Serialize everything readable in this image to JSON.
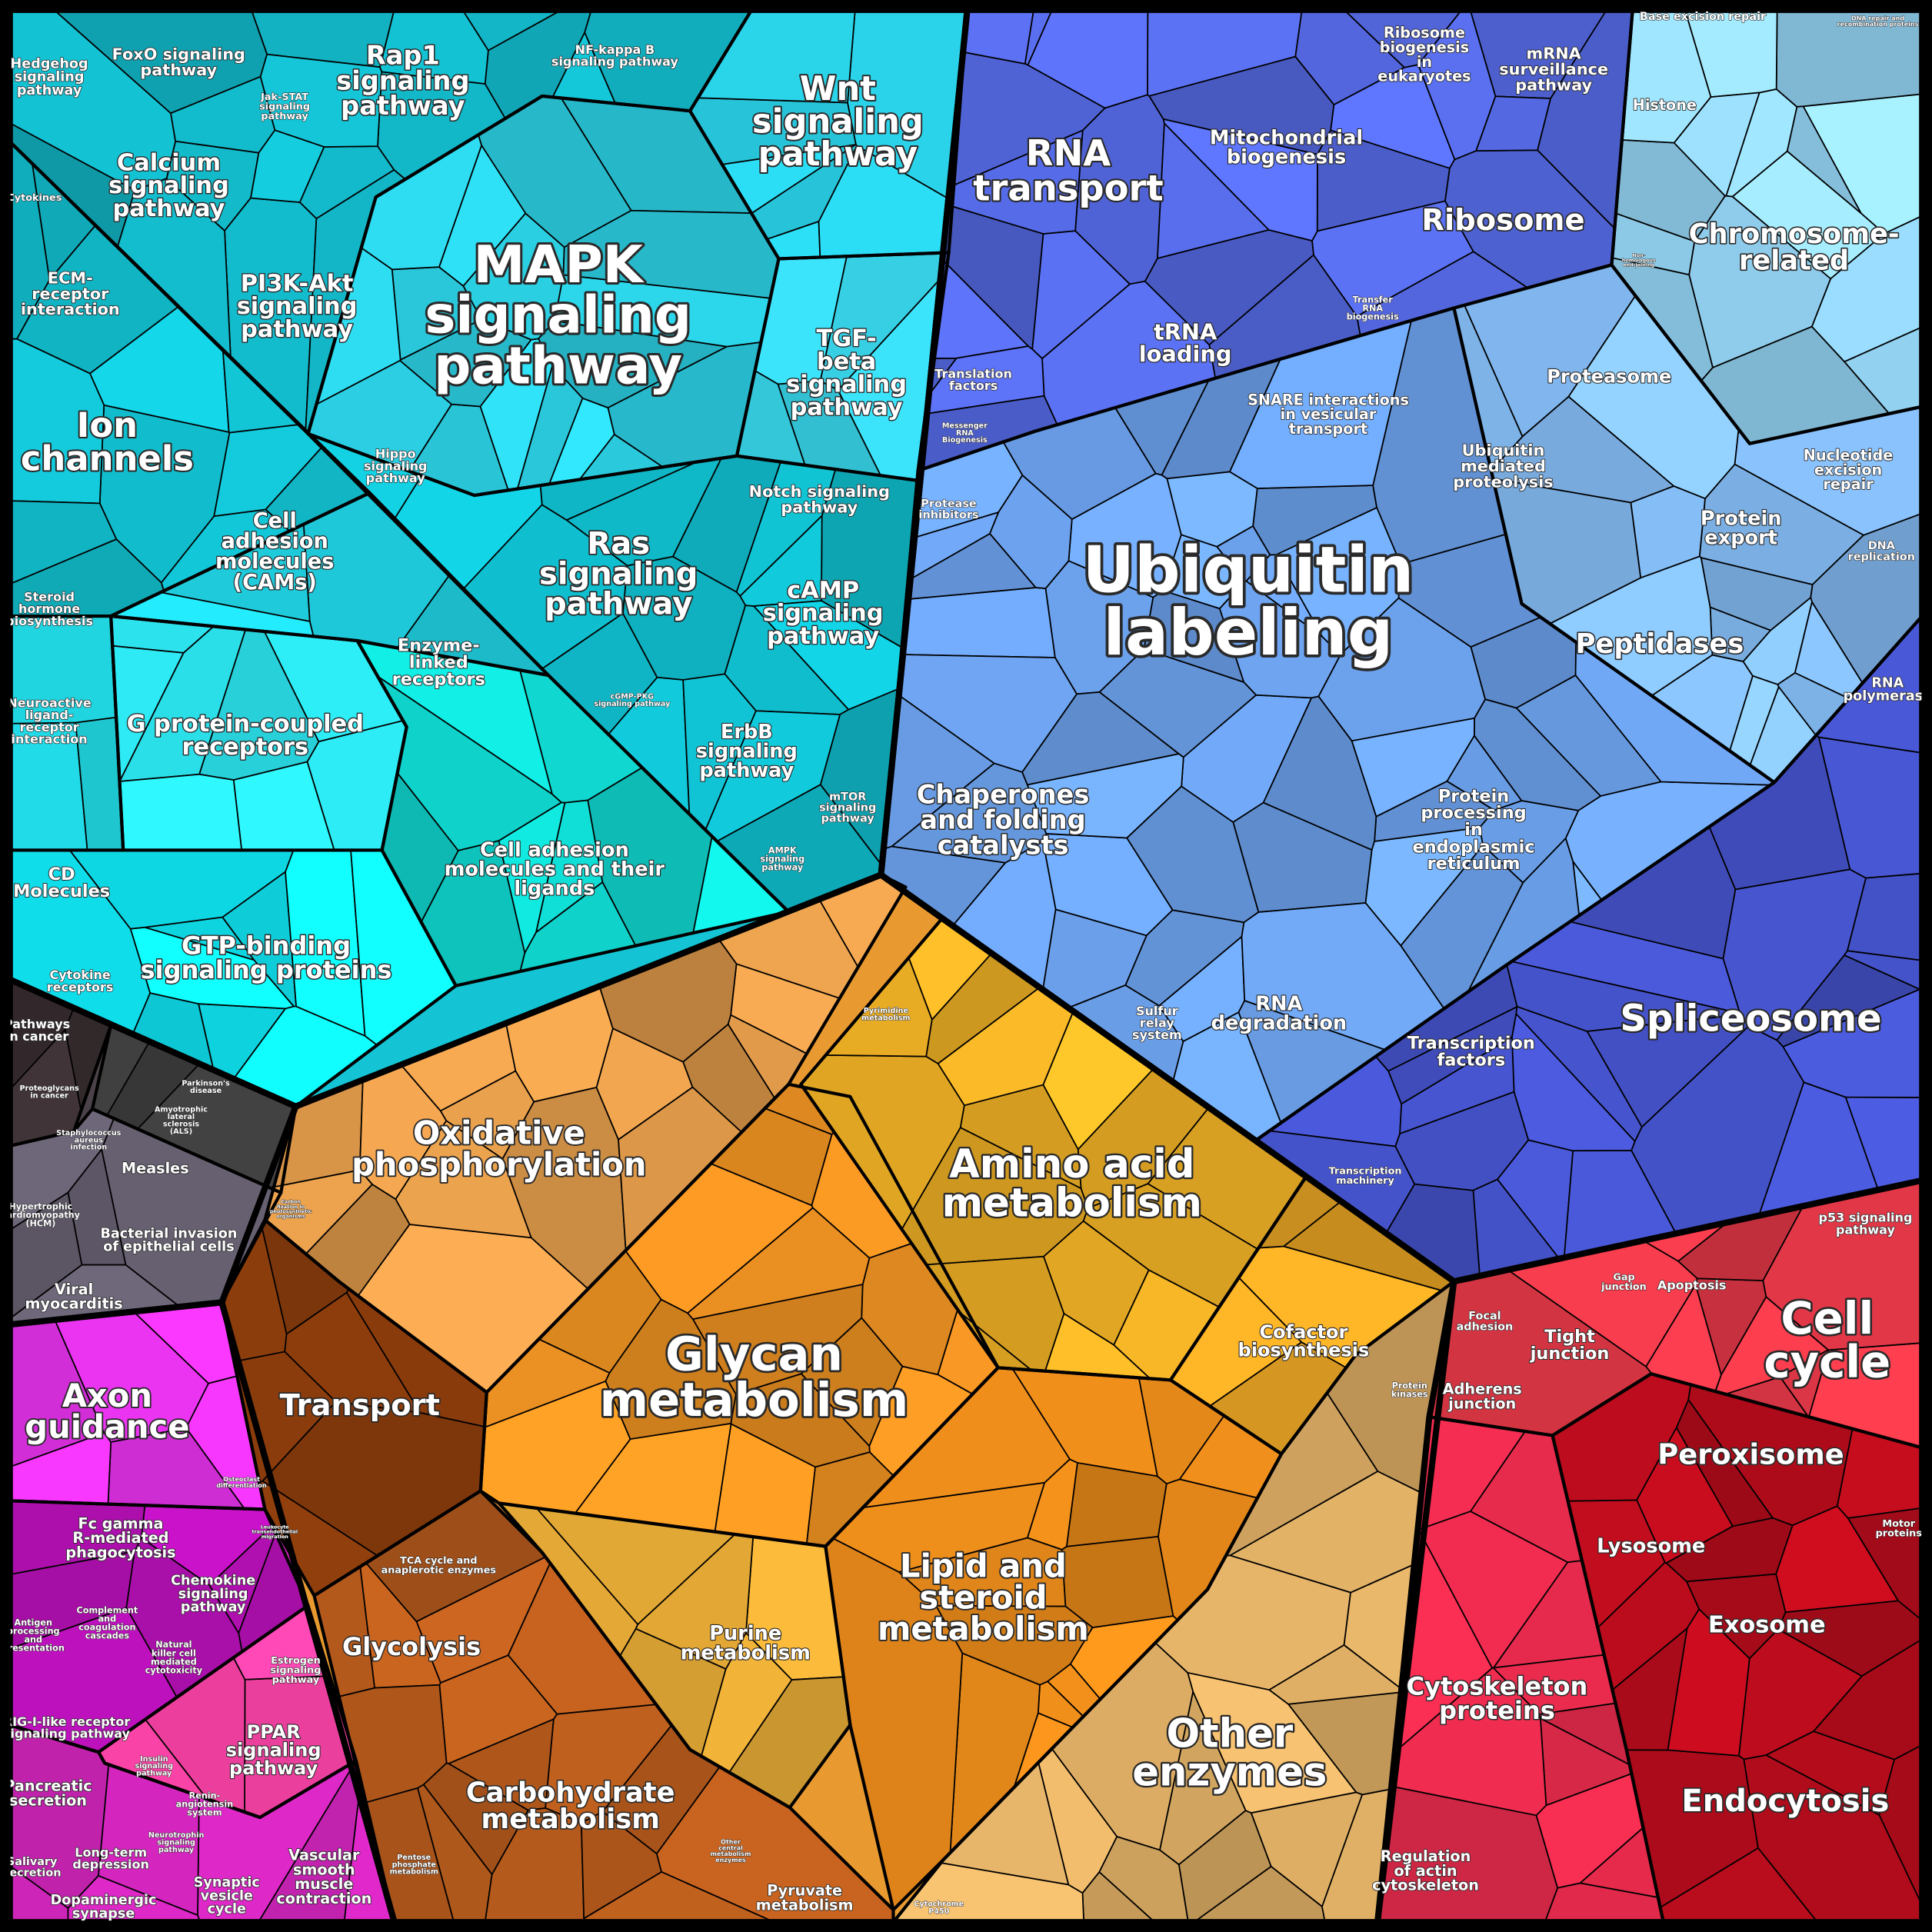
{
  "chart_data": {
    "type": "treemap",
    "style": "voronoi proteomap",
    "groups": [
      {
        "color": "#14c4d4",
        "labels": [
          "Hedgehog\nsignaling\npathway",
          "FoxO signaling\npathway",
          "Jak-STAT\nsignaling\npathway",
          "Rap1\nsignaling\npathway",
          "NF-kappa B\nsignaling pathway",
          "Wnt\nsignaling\npathway",
          "Calcium\nsignaling\npathway",
          "Cytokines",
          "ECM-\nreceptor\ninteraction",
          "PI3K-Akt\nsignaling\npathway",
          "MAPK\nsignaling\npathway",
          "TGF-\nbeta\nsignaling\npathway",
          "Ion\nchannels",
          "Hippo\nsignaling\npathway",
          "Cell\nadhesion\nmolecules\n(CAMs)",
          "Notch signaling\npathway",
          "Ras\nsignaling\npathway",
          "cAMP\nsignaling\npathway",
          "Steroid\nhormone\nbiosynthesis",
          "Enzyme-\nlinked\nreceptors",
          "cGMP-PKG\nsignaling pathway",
          "Neuroactive\nligand-\nreceptor\ninteraction",
          "G protein-coupled\nreceptors",
          "ErbB\nsignaling\npathway",
          "mTOR\nsignaling\npathway",
          "Cell adhesion\nmolecules and their\nligands",
          "AMPK\nsignaling\npathway",
          "CD\nMolecules",
          "GTP-binding\nsignaling proteins",
          "Cytokine\nreceptors"
        ]
      },
      {
        "color": "#4a4248",
        "labels": [
          "Pathways\nin cancer",
          "Proteoglycans\nin cancer",
          "Parkinson's\ndisease",
          "Amyotrophic\nlateral\nsclerosis\n(ALS)",
          "Staphylococcus\naureus\ninfection",
          "Measles",
          "Hypertrophic\ncardiomyopathy\n(HCM)",
          "Bacterial invasion\nof epithelial cells",
          "Viral\nmyocarditis"
        ]
      },
      {
        "color": "#c824b4",
        "labels": [
          "Axon\nguidance",
          "Osteoclast\ndifferentiation",
          "Fc gamma\nR-mediated\nphagocytosis",
          "Leukocyte\ntransendothelial\nmigration",
          "Chemokine\nsignaling\npathway",
          "Complement\nand\ncoagulation\ncascades",
          "Antigen\nprocessing\nand\npresentation",
          "Natural\nkiller cell\nmediated\ncytotoxicity",
          "Estrogen\nsignaling\npathway",
          "RIG-I-like receptor\nsignaling pathway",
          "PPAR\nsignaling\npathway",
          "Insulin\nsignaling\npathway",
          "Renin-\nangiotensin\nsystem",
          "Pancreatic\nsecretion",
          "Neurotrophin\nsignaling\npathway",
          "Salivary\nsecretion",
          "Long-term\ndepression",
          "Synaptic\nvesicle\ncycle",
          "Vascular\nsmooth\nmuscle\ncontraction",
          "Dopaminergic\nsynapse"
        ]
      },
      {
        "color": "#e89a30",
        "labels": [
          "Pyrimidine\nmetabolism",
          "Oxidative\nphosphorylation",
          "Carbon\nfixation in\nphotosynthetic\norganisms",
          "Amino acid\nmetabolism",
          "Cofactor\nbiosynthesis",
          "Transport",
          "Glycan\nmetabolism",
          "Protein\nkinases",
          "TCA cycle and\nanaplerotic enzymes",
          "Lipid and\nsteroid\nmetabolism",
          "Glycolysis",
          "Purine\nmetabolism",
          "Carbohydrate\nmetabolism",
          "Other\nenzymes",
          "Pentose\nphosphate\nmetabolism",
          "Other\ncentral\nmetabolism\nenzymes",
          "Pyruvate\nmetabolism",
          "Cytochrome\nP450"
        ]
      },
      {
        "color": "#6a8ee8",
        "labels": [
          "Ribosome\nbiogenesis\nin\neukaryotes",
          "Base excision repair",
          "DNA repair and\nrecombination proteins",
          "mRNA\nsurveillance\npathway",
          "Histone",
          "Mitochondrial\nbiogenesis",
          "RNA\ntransport",
          "Ribosome",
          "Chromosome-\nrelated",
          "Non-\nhomologous\nend-joining",
          "Transfer\nRNA\nbiogenesis",
          "tRNA\nloading",
          "Translation\nfactors",
          "Proteasome",
          "SNARE interactions\nin vesicular\ntransport",
          "Messenger\nRNA\nBiogenesis",
          "Ubiquitin\nmediated\nproteolysis",
          "Nucleotide\nexcision\nrepair",
          "Protease\ninhibitors",
          "Protein\nexport",
          "DNA\nreplication",
          "Ubiquitin\nlabeling",
          "Peptidases",
          "RNA\npolymerase",
          "Chaperones\nand folding\ncatalysts",
          "Protein\nprocessing\nin\nendoplasmic\nreticulum",
          "RNA\ndegradation",
          "Sulfur\nrelay\nsystem",
          "Spliceosome",
          "Transcription\nfactors",
          "Transcription\nmachinery"
        ]
      },
      {
        "color": "#d42838",
        "labels": [
          "p53 signaling\npathway",
          "Gap\njunction",
          "Apoptosis",
          "Focal\nadhesion",
          "Cell\ncycle",
          "Tight\njunction",
          "Adherens\njunction",
          "Peroxisome",
          "Motor\nproteins",
          "Lysosome",
          "Exosome",
          "Cytoskeleton\nproteins",
          "Endocytosis",
          "Regulation\nof actin\ncytoskeleton"
        ]
      }
    ]
  }
}
